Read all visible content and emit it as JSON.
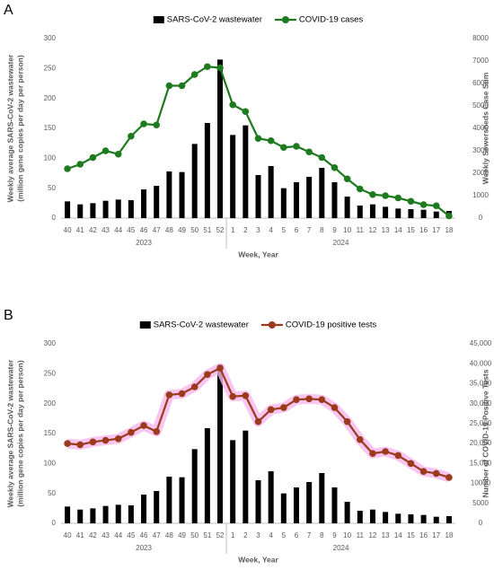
{
  "chart_data": [
    {
      "type": "bar_line",
      "panel_label": "A",
      "categories": [
        "40",
        "41",
        "42",
        "43",
        "44",
        "45",
        "46",
        "47",
        "48",
        "49",
        "50",
        "51",
        "52",
        "1",
        "2",
        "3",
        "4",
        "5",
        "6",
        "7",
        "8",
        "9",
        "10",
        "11",
        "12",
        "13",
        "14",
        "15",
        "16",
        "17",
        "18"
      ],
      "x_groups": [
        "2023",
        "2024"
      ],
      "xlabel": "Week, Year",
      "ylabel": [
        "Weekly average SARS-CoV-2 wastewater",
        "(million gene copies per day per person)"
      ],
      "y2label": "Weekly Sewersheds Case Sum",
      "ylim": [
        0,
        300
      ],
      "yticks": [
        0,
        50,
        100,
        150,
        200,
        250,
        300
      ],
      "y2lim": [
        0,
        8000
      ],
      "y2ticks": [
        0,
        1000,
        2000,
        3000,
        4000,
        5000,
        6000,
        7000,
        8000
      ],
      "series": [
        {
          "name": "SARS-CoV-2 wastewater",
          "type": "bar",
          "color": "#000000",
          "values": [
            28,
            23,
            25,
            29,
            31,
            30,
            48,
            54,
            78,
            77,
            124,
            159,
            265,
            139,
            155,
            72,
            87,
            50,
            60,
            69,
            84,
            60,
            36,
            21,
            23,
            19,
            16,
            15,
            14,
            11,
            12
          ]
        },
        {
          "name": "COVID-19 cases",
          "type": "line",
          "axis": "y2",
          "color": "#1e7a1e",
          "values": [
            2200,
            2400,
            2700,
            3000,
            2850,
            3650,
            4200,
            4150,
            5900,
            5900,
            6400,
            6750,
            6700,
            5050,
            4750,
            3550,
            3450,
            3150,
            3200,
            2950,
            2700,
            2250,
            1750,
            1300,
            1050,
            1000,
            900,
            750,
            600,
            550,
            100
          ]
        }
      ]
    },
    {
      "type": "bar_line",
      "panel_label": "B",
      "categories": [
        "40",
        "41",
        "42",
        "43",
        "44",
        "45",
        "46",
        "47",
        "48",
        "49",
        "50",
        "51",
        "52",
        "1",
        "2",
        "3",
        "4",
        "5",
        "6",
        "7",
        "8",
        "9",
        "10",
        "11",
        "12",
        "13",
        "14",
        "15",
        "16",
        "17",
        "18"
      ],
      "x_groups": [
        "2023",
        "2024"
      ],
      "xlabel": "Week, Year",
      "ylabel": [
        "Weekly average SARS-CoV-2 wastewater",
        "(million gene copies per day per person)"
      ],
      "y2label": "Number of COVID-19 Positive Tests",
      "ylim": [
        0,
        300
      ],
      "yticks": [
        0,
        50,
        100,
        150,
        200,
        250,
        300
      ],
      "y2lim": [
        0,
        45000
      ],
      "y2ticks": [
        0,
        5000,
        10000,
        {
          "value": 15000,
          "label": "15,000"
        },
        {
          "value": 20000,
          "label": "20,000"
        },
        {
          "value": 25000,
          "label": "25,000"
        },
        {
          "value": 30000,
          "label": "30,000"
        },
        {
          "value": 35000,
          "label": "35,000"
        },
        {
          "value": 40000,
          "label": "40,000"
        },
        {
          "value": 45000,
          "label": "45,000"
        }
      ],
      "glow_color": "#f7b8ef",
      "series": [
        {
          "name": "SARS-CoV-2 wastewater",
          "type": "bar",
          "color": "#000000",
          "values": [
            28,
            23,
            25,
            29,
            31,
            30,
            48,
            54,
            78,
            77,
            124,
            159,
            265,
            139,
            155,
            72,
            87,
            50,
            60,
            69,
            84,
            60,
            36,
            21,
            23,
            19,
            16,
            15,
            14,
            11,
            12
          ]
        },
        {
          "name": "COVID-19 positive tests",
          "type": "line",
          "axis": "y2",
          "color": "#9c3a1c",
          "values": [
            20000,
            19700,
            20400,
            20800,
            21200,
            22800,
            24500,
            23000,
            32200,
            32500,
            34200,
            37300,
            38900,
            31800,
            32000,
            25500,
            28500,
            29000,
            31000,
            31200,
            31000,
            29000,
            25500,
            21000,
            17500,
            18000,
            17000,
            15000,
            13000,
            12500,
            11500
          ]
        }
      ]
    }
  ]
}
